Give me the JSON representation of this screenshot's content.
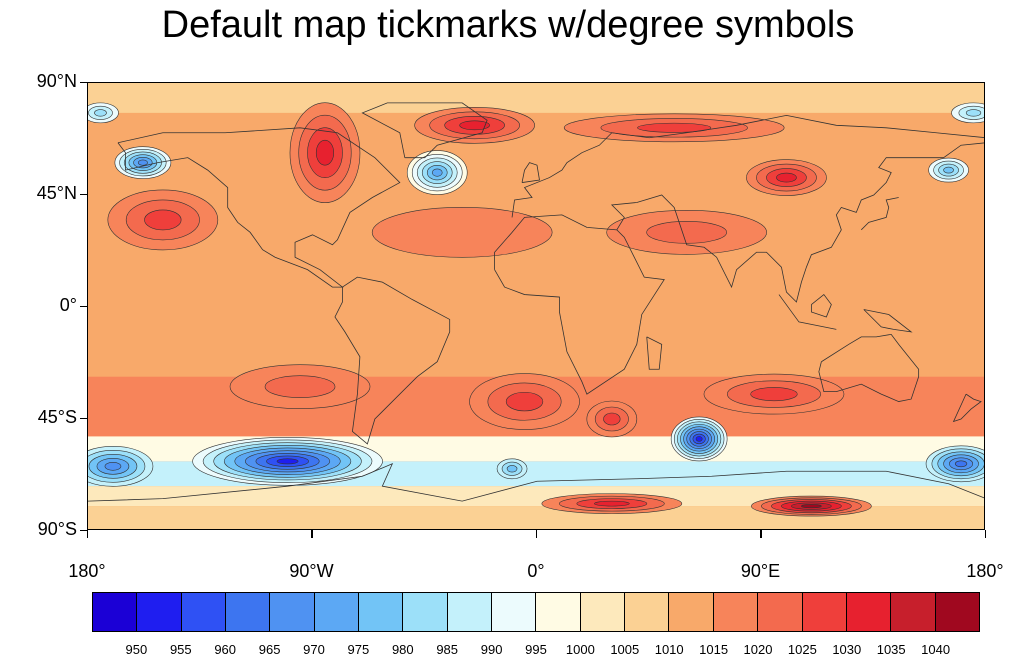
{
  "title": "Default map tickmarks w/degree symbols",
  "lat_labels": [
    {
      "text": "90°N",
      "lat": 90
    },
    {
      "text": "45°N",
      "lat": 45
    },
    {
      "text": "0°",
      "lat": 0
    },
    {
      "text": "45°S",
      "lat": -45
    },
    {
      "text": "90°S",
      "lat": -90
    }
  ],
  "lon_labels": [
    {
      "text": "180°",
      "lon": -180
    },
    {
      "text": "90°W",
      "lon": -90
    },
    {
      "text": "0°",
      "lon": 0
    },
    {
      "text": "90°E",
      "lon": 90
    },
    {
      "text": "180°",
      "lon": 180
    }
  ],
  "colorbar": {
    "levels": [
      "950",
      "955",
      "960",
      "965",
      "970",
      "975",
      "980",
      "985",
      "990",
      "995",
      "1000",
      "1005",
      "1010",
      "1015",
      "1020",
      "1025",
      "1030",
      "1035",
      "1040"
    ],
    "colors": [
      "#1b00d6",
      "#1f1ef0",
      "#2f51f4",
      "#3d75f0",
      "#4f92f2",
      "#5ca8f4",
      "#72c4f6",
      "#9ce0f9",
      "#c4f1fb",
      "#ecfbfd",
      "#fffbe4",
      "#fde9bc",
      "#fbd194",
      "#f8a96a",
      "#f7845a",
      "#f36a4e",
      "#ef3f3b",
      "#e7212f",
      "#c71f2c",
      "#a0081f"
    ]
  }
}
